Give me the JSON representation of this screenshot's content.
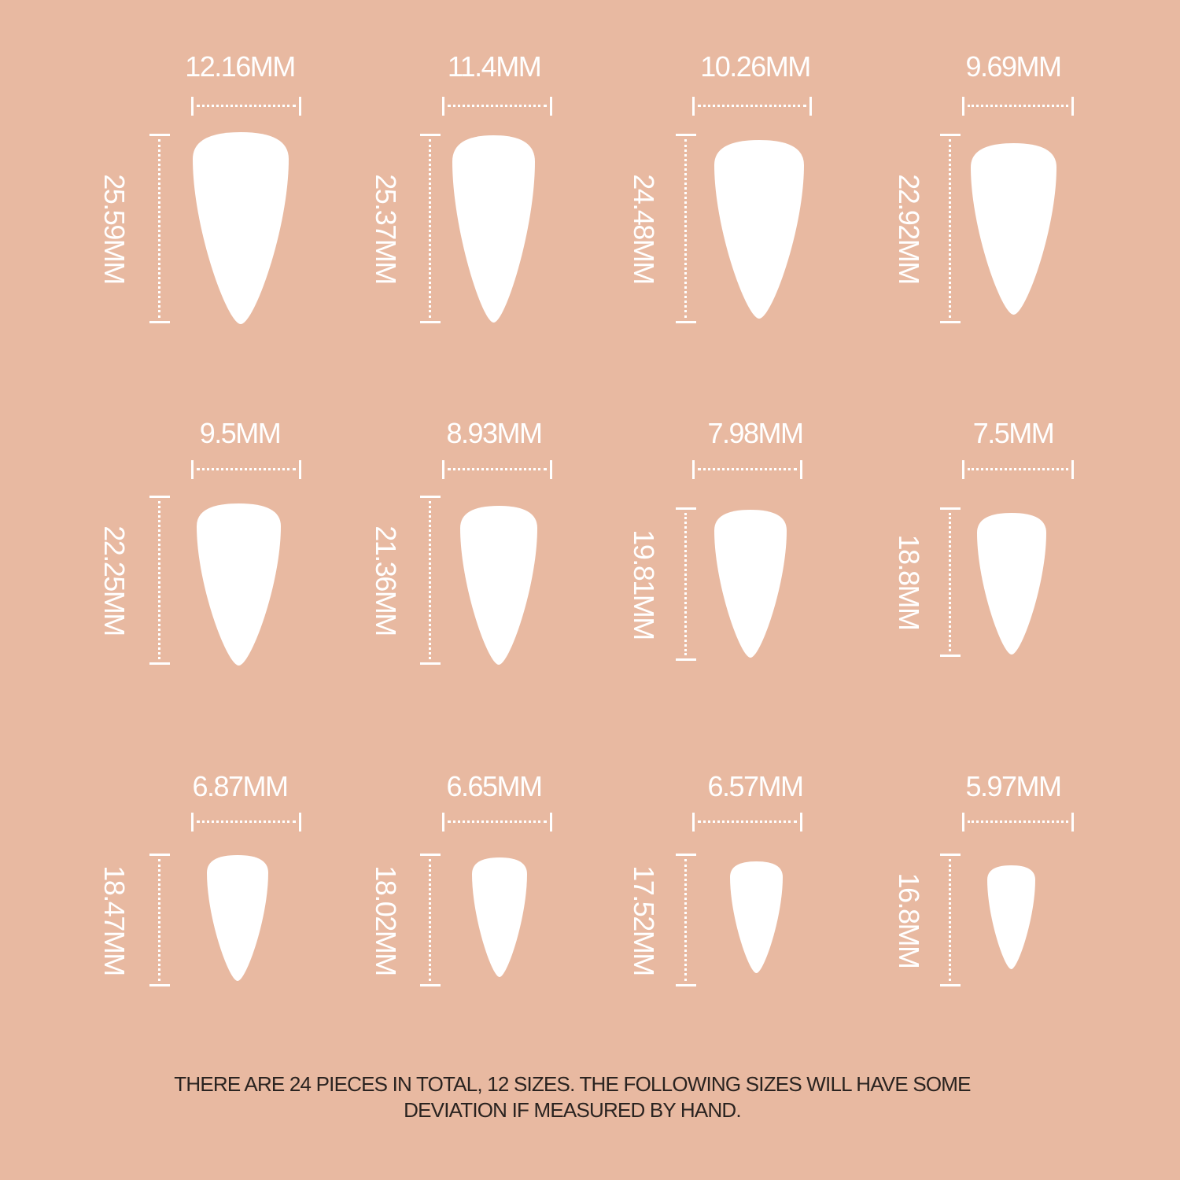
{
  "colors": {
    "background": "#e8b9a1",
    "marks": "#ffffff",
    "note_text": "#2a2320"
  },
  "sizes": [
    {
      "width": "12.16MM",
      "length": "25.59MM"
    },
    {
      "width": "11.4MM",
      "length": "25.37MM"
    },
    {
      "width": "10.26MM",
      "length": "24.48MM"
    },
    {
      "width": "9.69MM",
      "length": "22.92MM"
    },
    {
      "width": "9.5MM",
      "length": "22.25MM"
    },
    {
      "width": "8.93MM",
      "length": "21.36MM"
    },
    {
      "width": "7.98MM",
      "length": "19.81MM"
    },
    {
      "width": "7.5MM",
      "length": "18.8MM"
    },
    {
      "width": "6.87MM",
      "length": "18.47MM"
    },
    {
      "width": "6.65MM",
      "length": "18.02MM"
    },
    {
      "width": "6.57MM",
      "length": "17.52MM"
    },
    {
      "width": "5.97MM",
      "length": "16.8MM"
    }
  ],
  "note": {
    "line1": "THERE ARE 24 PIECES IN TOTAL, 12 SIZES. THE FOLLOWING SIZES WILL HAVE SOME",
    "line2": "DEVIATION IF MEASURED BY HAND."
  }
}
